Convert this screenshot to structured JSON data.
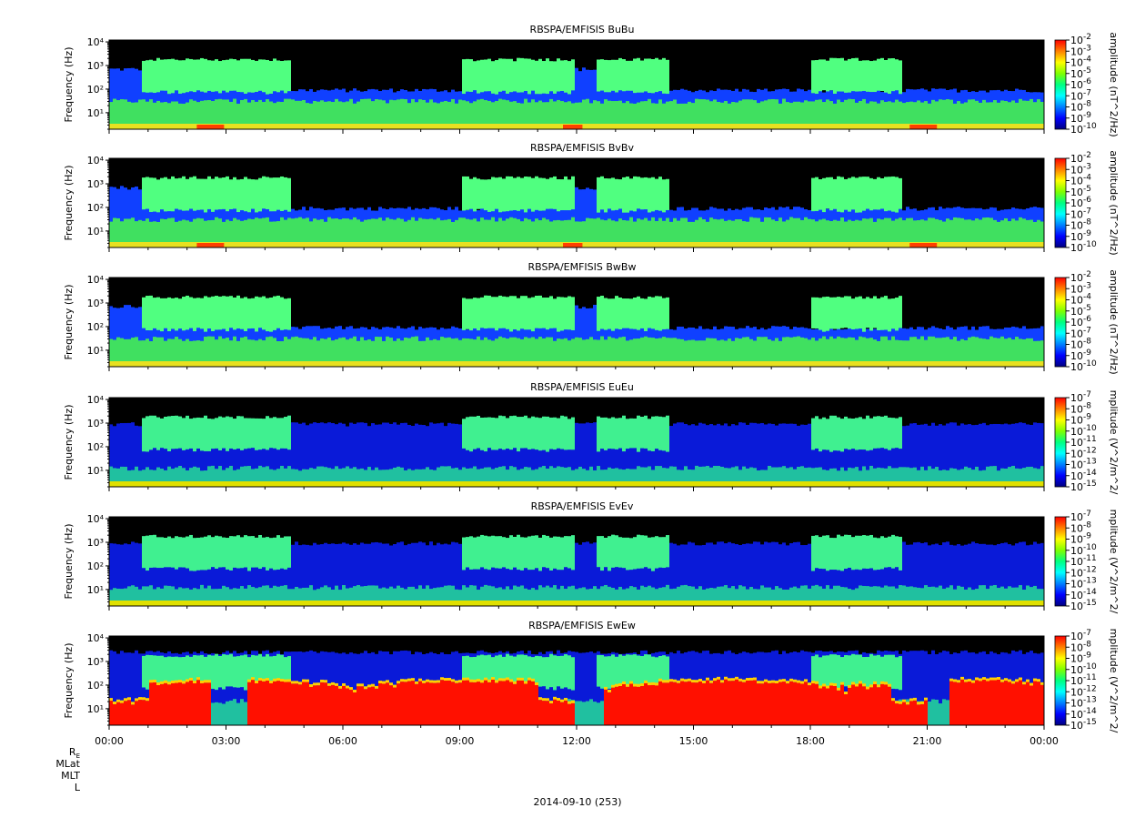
{
  "chart_data": [
    {
      "type": "heatmap",
      "title": "RBSPA/EMFISIS  BuBu",
      "ylabel": "Frequency (Hz)",
      "colorbar_label": "amplitude (nT^2/Hz)",
      "colorbar_ticks": [
        "10-2",
        "10-3",
        "10-4",
        "10-5",
        "10-6",
        "10-7",
        "10-8",
        "10-9",
        "10-10"
      ],
      "ylim": [
        2,
        12000
      ],
      "yscale": "log",
      "yticks": [
        "10⁴",
        "10³",
        "10²",
        "10¹"
      ],
      "style": "B"
    },
    {
      "type": "heatmap",
      "title": "RBSPA/EMFISIS  BvBv",
      "ylabel": "Frequency (Hz)",
      "colorbar_label": "amplitude (nT^2/Hz)",
      "colorbar_ticks": [
        "10-2",
        "10-3",
        "10-4",
        "10-5",
        "10-6",
        "10-7",
        "10-8",
        "10-9",
        "10-10"
      ],
      "ylim": [
        2,
        12000
      ],
      "yscale": "log",
      "yticks": [
        "10⁴",
        "10³",
        "10²",
        "10¹"
      ],
      "style": "B"
    },
    {
      "type": "heatmap",
      "title": "RBSPA/EMFISIS  BwBw",
      "ylabel": "Frequency (Hz)",
      "colorbar_label": "amplitude (nT^2/Hz)",
      "colorbar_ticks": [
        "10-2",
        "10-3",
        "10-4",
        "10-5",
        "10-6",
        "10-7",
        "10-8",
        "10-9",
        "10-10"
      ],
      "ylim": [
        2,
        12000
      ],
      "yscale": "log",
      "yticks": [
        "10⁴",
        "10³",
        "10²",
        "10¹"
      ],
      "style": "B"
    },
    {
      "type": "heatmap",
      "title": "RBSPA/EMFISIS  EuEu",
      "ylabel": "Frequency (Hz)",
      "colorbar_label": "mplitude (V^2/m^2/",
      "colorbar_ticks": [
        "10-7",
        "10-8",
        "10-9",
        "10-10",
        "10-11",
        "10-12",
        "10-13",
        "10-14",
        "10-15"
      ],
      "ylim": [
        2,
        12000
      ],
      "yscale": "log",
      "yticks": [
        "10⁴",
        "10³",
        "10²",
        "10¹"
      ],
      "style": "E"
    },
    {
      "type": "heatmap",
      "title": "RBSPA/EMFISIS  EvEv",
      "ylabel": "Frequency (Hz)",
      "colorbar_label": "mplitude (V^2/m^2/",
      "colorbar_ticks": [
        "10-7",
        "10-8",
        "10-9",
        "10-10",
        "10-11",
        "10-12",
        "10-13",
        "10-14",
        "10-15"
      ],
      "ylim": [
        2,
        12000
      ],
      "yscale": "log",
      "yticks": [
        "10⁴",
        "10³",
        "10²",
        "10¹"
      ],
      "style": "E"
    },
    {
      "type": "heatmap",
      "title": "RBSPA/EMFISIS  EwEw",
      "ylabel": "Frequency (Hz)",
      "colorbar_label": "mplitude (V^2/m^2/",
      "colorbar_ticks": [
        "10-7",
        "10-8",
        "10-9",
        "10-10",
        "10-11",
        "10-12",
        "10-13",
        "10-14",
        "10-15"
      ],
      "ylim": [
        2,
        12000
      ],
      "yscale": "log",
      "yticks": [
        "10⁴",
        "10³",
        "10²",
        "10¹"
      ],
      "style": "Ew"
    }
  ],
  "x_axis": {
    "ticks": [
      "00:00",
      "03:00",
      "06:00",
      "09:00",
      "12:00",
      "15:00",
      "18:00",
      "21:00",
      "00:00"
    ],
    "xlim_hours": [
      0,
      24
    ]
  },
  "ephemeris_labels": [
    "RE",
    "MLat",
    "MLT",
    "L"
  ],
  "date_label": "2014-09-10 (253)",
  "colors": {
    "background": "#000000",
    "colormap": [
      "#00007f",
      "#0000ff",
      "#0080ff",
      "#00ffff",
      "#00ff80",
      "#80ff00",
      "#ffff00",
      "#ff8000",
      "#ff0000"
    ]
  }
}
